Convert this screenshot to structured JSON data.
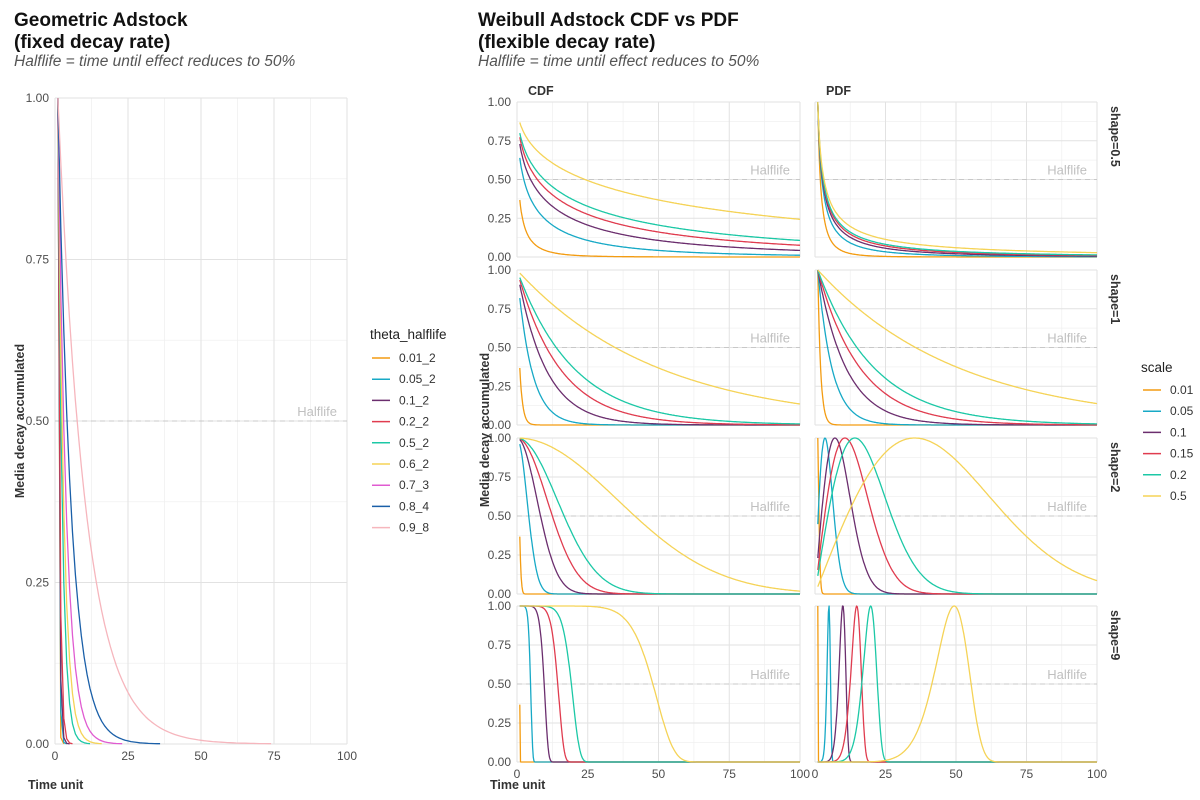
{
  "chart_data": [
    {
      "type": "line",
      "title": "Geometric Adstock\n(fixed decay rate)",
      "subtitle": "Halflife = time until effect reduces to 50%",
      "xlabel": "Time unit",
      "ylabel": "Media decay accumulated",
      "xlim": [
        0,
        100
      ],
      "ylim": [
        0,
        1
      ],
      "xticks": [
        "0",
        "25",
        "50",
        "75",
        "100"
      ],
      "yticks": [
        "0.00",
        "0.25",
        "0.50",
        "0.75",
        "1.00"
      ],
      "hline": {
        "y": 0.5,
        "label": "Halflife"
      },
      "legend_title": "theta_halflife",
      "legend_position": "right",
      "series": [
        {
          "name": "0.01_2",
          "theta": 0.01,
          "color": "#f39c12"
        },
        {
          "name": "0.05_2",
          "theta": 0.05,
          "color": "#17a9c6"
        },
        {
          "name": "0.1_2",
          "theta": 0.1,
          "color": "#6b2e6e"
        },
        {
          "name": "0.2_2",
          "theta": 0.2,
          "color": "#e03c4f"
        },
        {
          "name": "0.5_2",
          "theta": 0.5,
          "color": "#1cc8a6"
        },
        {
          "name": "0.6_2",
          "theta": 0.6,
          "color": "#f5d357"
        },
        {
          "name": "0.7_3",
          "theta": 0.7,
          "color": "#e05bd1"
        },
        {
          "name": "0.8_4",
          "theta": 0.8,
          "color": "#1a5fa8"
        },
        {
          "name": "0.9_8",
          "theta": 0.9,
          "color": "#f6b6bd"
        }
      ]
    },
    {
      "type": "line",
      "title": "Weibull Adstock CDF vs PDF\n(flexible decay rate)",
      "subtitle": "Halflife = time until effect reduces to 50%",
      "xlabel": "Time unit",
      "ylabel": "Media decay accumulated",
      "xlim": [
        0,
        100
      ],
      "ylim": [
        0,
        1
      ],
      "xticks": [
        "0",
        "25",
        "50",
        "75",
        "100"
      ],
      "yticks": [
        "0.00",
        "0.25",
        "0.50",
        "0.75",
        "1.00"
      ],
      "columns": [
        "CDF",
        "PDF"
      ],
      "rows": [
        {
          "label": "shape=0.5",
          "shape": 0.5
        },
        {
          "label": "shape=1",
          "shape": 1
        },
        {
          "label": "shape=2",
          "shape": 2
        },
        {
          "label": "shape=9",
          "shape": 9
        }
      ],
      "hline": {
        "y": 0.5,
        "label": "Halflife"
      },
      "legend_title": "scale",
      "legend_position": "right",
      "series": [
        {
          "name": "0.01",
          "scale": 0.01,
          "color": "#f39c12"
        },
        {
          "name": "0.05",
          "scale": 0.05,
          "color": "#17a9c6"
        },
        {
          "name": "0.1",
          "scale": 0.1,
          "color": "#6b2e6e"
        },
        {
          "name": "0.15",
          "scale": 0.15,
          "color": "#e03c4f"
        },
        {
          "name": "0.2",
          "scale": 0.2,
          "color": "#1cc8a6"
        },
        {
          "name": "0.5",
          "scale": 0.5,
          "color": "#f5d357"
        }
      ]
    }
  ]
}
